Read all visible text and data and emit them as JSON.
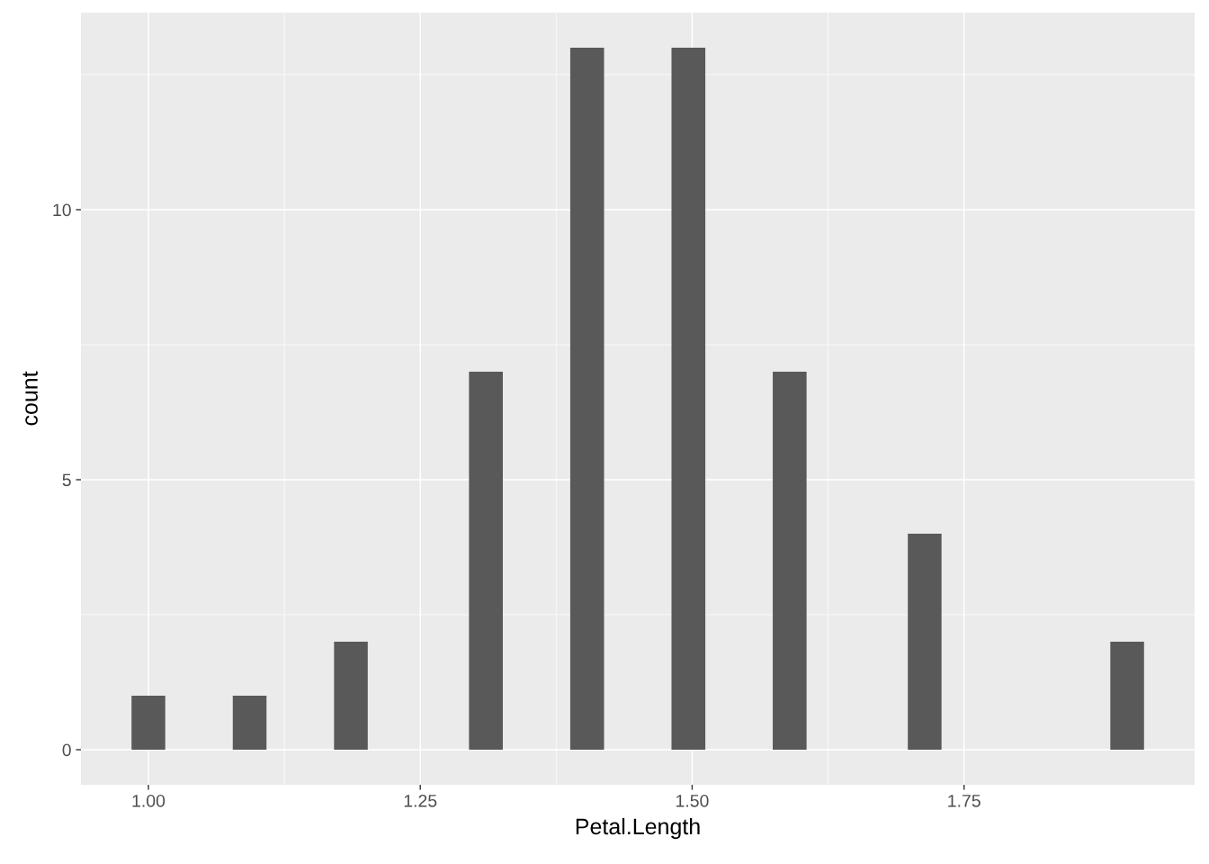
{
  "chart_data": {
    "type": "histogram",
    "xlabel": "Petal.Length",
    "ylabel": "count",
    "color": "#595959",
    "bins": [
      0.9845,
      1.0155,
      1.0466,
      1.0776,
      1.1086,
      1.1397,
      1.1707,
      1.2017,
      1.2328,
      1.2638,
      1.2948,
      1.3259,
      1.3569,
      1.3879,
      1.419,
      1.45,
      1.481,
      1.5121,
      1.5431,
      1.5741,
      1.6052,
      1.6362,
      1.6672,
      1.6983,
      1.7293,
      1.7603,
      1.7914,
      1.8224,
      1.8534,
      1.8845,
      1.9155
    ],
    "values": [
      1,
      0,
      0,
      1,
      0,
      0,
      2,
      0,
      0,
      0,
      7,
      0,
      0,
      13,
      0,
      0,
      13,
      0,
      0,
      7,
      0,
      0,
      0,
      4,
      0,
      0,
      0,
      0,
      0,
      2
    ],
    "xlim": [
      0.938,
      1.962
    ],
    "ylim": [
      -0.65,
      13.65
    ],
    "xticks": [
      {
        "value": 1.0,
        "label": "1.00"
      },
      {
        "value": 1.25,
        "label": "1.25"
      },
      {
        "value": 1.5,
        "label": "1.50"
      },
      {
        "value": 1.75,
        "label": "1.75"
      }
    ],
    "yticks": [
      0,
      5,
      10
    ],
    "grid": true
  }
}
